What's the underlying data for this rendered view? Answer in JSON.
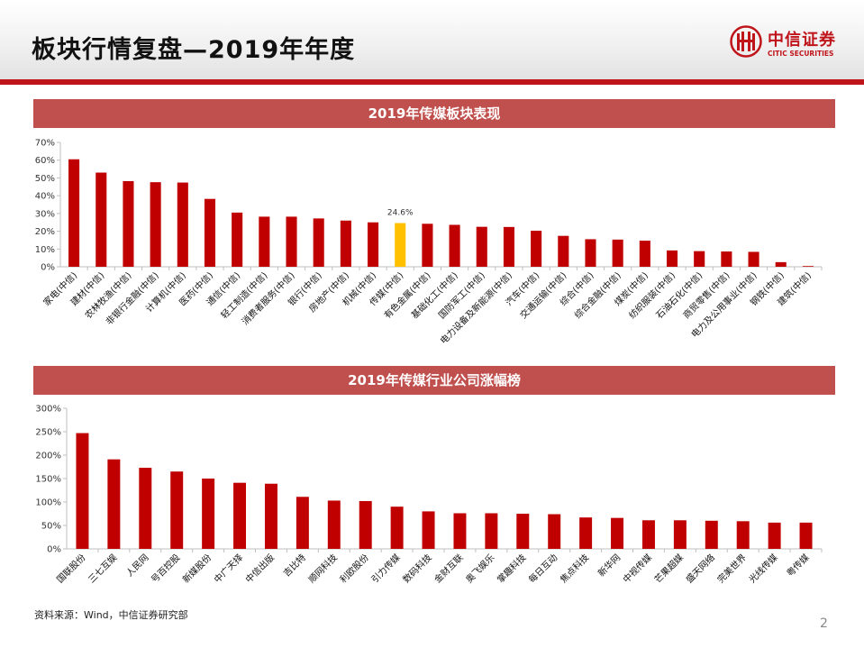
{
  "page": {
    "title": "板块行情复盘—2019年年度",
    "source": "资料来源：Wind，中信证券研究部",
    "page_number": "2"
  },
  "logo": {
    "name_cn": "中信证券",
    "name_en": "CITIC SECURITIES",
    "icon": "citic-emblem-icon"
  },
  "colors": {
    "brand_red": "#c0141b",
    "banner": "#c0504d",
    "bar": "#c00000",
    "highlight_bar": "#ffc000"
  },
  "chart_data": [
    {
      "type": "bar",
      "title": "2019年传媒板块表现",
      "ylim": [
        0,
        70
      ],
      "yticks": [
        "0%",
        "10%",
        "20%",
        "30%",
        "40%",
        "50%",
        "60%",
        "70%"
      ],
      "categories": [
        "家电(中信)",
        "建材(中信)",
        "农林牧渔(中信)",
        "非银行金融(中信)",
        "计算机(中信)",
        "医药(中信)",
        "通信(中信)",
        "轻工制造(中信)",
        "消费者服务(中信)",
        "银行(中信)",
        "房地产(中信)",
        "机械(中信)",
        "传媒(中信)",
        "有色金属(中信)",
        "基础化工(中信)",
        "国防军工(中信)",
        "电力设备及新能源(中信)",
        "汽车(中信)",
        "交通运输(中信)",
        "综合(中信)",
        "综合金融(中信)",
        "煤炭(中信)",
        "纺织服装(中信)",
        "石油石化(中信)",
        "商贸零售(中信)",
        "电力及公用事业(中信)",
        "钢铁(中信)",
        "建筑(中信)"
      ],
      "values": [
        60.5,
        53,
        48.2,
        47.6,
        47.4,
        38.2,
        30.5,
        28.2,
        28.2,
        27.2,
        26,
        25,
        24.6,
        24.2,
        23.6,
        22.5,
        22.4,
        20.3,
        17.4,
        15.5,
        15.3,
        14.7,
        9.2,
        8.8,
        8.6,
        8.4,
        2.6,
        0.4
      ],
      "highlight_index": 12,
      "annotation": "24.6%"
    },
    {
      "type": "bar",
      "title": "2019年传媒行业公司涨幅榜",
      "ylim": [
        0,
        300
      ],
      "yticks": [
        "0%",
        "50%",
        "100%",
        "150%",
        "200%",
        "250%",
        "300%"
      ],
      "categories": [
        "国联股份",
        "三七互娱",
        "人民网",
        "号百控股",
        "新媒股份",
        "中广天择",
        "中信出版",
        "吉比特",
        "顺网科技",
        "利欧股份",
        "引力传媒",
        "数码科技",
        "金财互联",
        "奥飞娱乐",
        "掌趣科技",
        "每日互动",
        "焦点科技",
        "新华网",
        "中视传媒",
        "芒果超媒",
        "盛天网络",
        "完美世界",
        "光线传媒",
        "粤传媒"
      ],
      "values": [
        247,
        191,
        173,
        165,
        150,
        141,
        139,
        111,
        103,
        102,
        90,
        80,
        76,
        76,
        75,
        74,
        67,
        66,
        61,
        61,
        60,
        59,
        56,
        56
      ]
    }
  ]
}
